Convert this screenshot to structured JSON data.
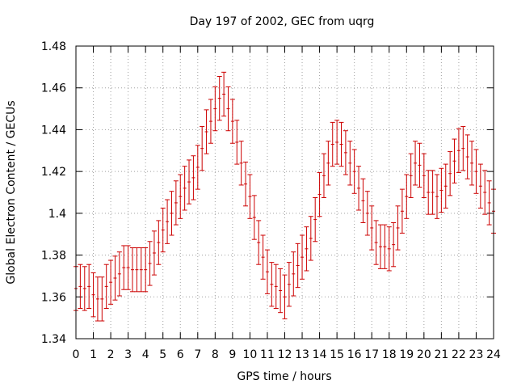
{
  "chart_data": {
    "type": "scatter",
    "title": "Day 197 of 2002, GEC from uqrg",
    "xlabel": "GPS time / hours",
    "ylabel": "Global Electron Content / GECUs",
    "xlim": [
      0,
      24
    ],
    "ylim": [
      1.34,
      1.48
    ],
    "xticks": [
      "0",
      "1",
      "2",
      "3",
      "4",
      "5",
      "6",
      "7",
      "8",
      "9",
      "10",
      "11",
      "12",
      "13",
      "14",
      "15",
      "16",
      "17",
      "18",
      "19",
      "20",
      "21",
      "22",
      "23",
      "24"
    ],
    "yticks": [
      "1.34",
      "1.36",
      "1.38",
      "1.4",
      "1.42",
      "1.44",
      "1.46",
      "1.48"
    ],
    "grid": true,
    "error": 0.0105,
    "series": [
      {
        "name": "GEC",
        "color": "#cc0000",
        "x": [
          0,
          0.25,
          0.5,
          0.75,
          1,
          1.25,
          1.5,
          1.75,
          2,
          2.25,
          2.5,
          2.75,
          3,
          3.25,
          3.5,
          3.75,
          4,
          4.25,
          4.5,
          4.75,
          5,
          5.25,
          5.5,
          5.75,
          6,
          6.25,
          6.5,
          6.75,
          7,
          7.25,
          7.5,
          7.75,
          8,
          8.25,
          8.5,
          8.75,
          9,
          9.25,
          9.5,
          9.75,
          10,
          10.25,
          10.5,
          10.75,
          11,
          11.25,
          11.5,
          11.75,
          12,
          12.25,
          12.5,
          12.75,
          13,
          13.25,
          13.5,
          13.75,
          14,
          14.25,
          14.5,
          14.75,
          15,
          15.25,
          15.5,
          15.75,
          16,
          16.25,
          16.5,
          16.75,
          17,
          17.25,
          17.5,
          17.75,
          18,
          18.25,
          18.5,
          18.75,
          19,
          19.25,
          19.5,
          19.75,
          20,
          20.25,
          20.5,
          20.75,
          21,
          21.25,
          21.5,
          21.75,
          22,
          22.25,
          22.5,
          22.75,
          23,
          23.25,
          23.5,
          23.75,
          24
        ],
        "y": [
          1.364,
          1.365,
          1.364,
          1.365,
          1.361,
          1.359,
          1.359,
          1.365,
          1.367,
          1.369,
          1.371,
          1.374,
          1.374,
          1.373,
          1.373,
          1.373,
          1.373,
          1.376,
          1.381,
          1.386,
          1.392,
          1.396,
          1.4,
          1.405,
          1.408,
          1.412,
          1.415,
          1.417,
          1.422,
          1.431,
          1.439,
          1.444,
          1.45,
          1.455,
          1.457,
          1.45,
          1.444,
          1.434,
          1.424,
          1.414,
          1.408,
          1.398,
          1.386,
          1.379,
          1.372,
          1.366,
          1.365,
          1.363,
          1.36,
          1.366,
          1.371,
          1.375,
          1.379,
          1.383,
          1.388,
          1.397,
          1.409,
          1.418,
          1.424,
          1.433,
          1.434,
          1.433,
          1.429,
          1.424,
          1.42,
          1.412,
          1.406,
          1.4,
          1.393,
          1.386,
          1.384,
          1.384,
          1.383,
          1.385,
          1.393,
          1.401,
          1.408,
          1.418,
          1.424,
          1.423,
          1.418,
          1.41,
          1.41,
          1.408,
          1.411,
          1.413,
          1.419,
          1.425,
          1.43,
          1.431,
          1.427,
          1.424,
          1.42,
          1.413,
          1.41,
          1.405,
          1.401
        ]
      }
    ]
  }
}
